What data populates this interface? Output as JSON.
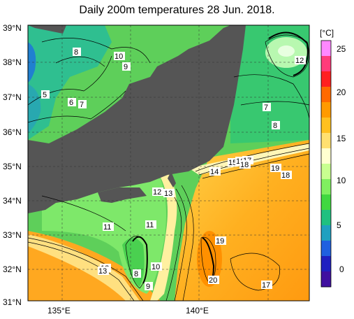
{
  "title": "Daily 200m temperatures 28 Jun. 2018.",
  "unit_label": "[°C]",
  "lat_labels": [
    "39°N",
    "38°N",
    "37°N",
    "36°N",
    "35°N",
    "34°N",
    "33°N",
    "32°N",
    "31°N"
  ],
  "lon_labels": [
    "135°E",
    "140°E"
  ],
  "colorbar": {
    "ticks": [
      "25",
      "20",
      "15",
      "10",
      "5",
      "0"
    ],
    "colors": [
      "#ff88ff",
      "#ff3b7a",
      "#ff2020",
      "#ff6a00",
      "#ff9a00",
      "#ffc020",
      "#ffe070",
      "#ffffd0",
      "#c8ff90",
      "#80f060",
      "#40d840",
      "#20c080",
      "#20a0c0",
      "#2060e0",
      "#2020c0",
      "#4010a0"
    ]
  },
  "contour_labels": [
    "8",
    "10",
    "9",
    "12",
    "5",
    "6",
    "7",
    "7",
    "8",
    "14",
    "15",
    "16",
    "17",
    "18",
    "19",
    "18",
    "12",
    "13",
    "11",
    "11",
    "19",
    "12",
    "13",
    "8",
    "10",
    "9",
    "20",
    "17"
  ]
}
